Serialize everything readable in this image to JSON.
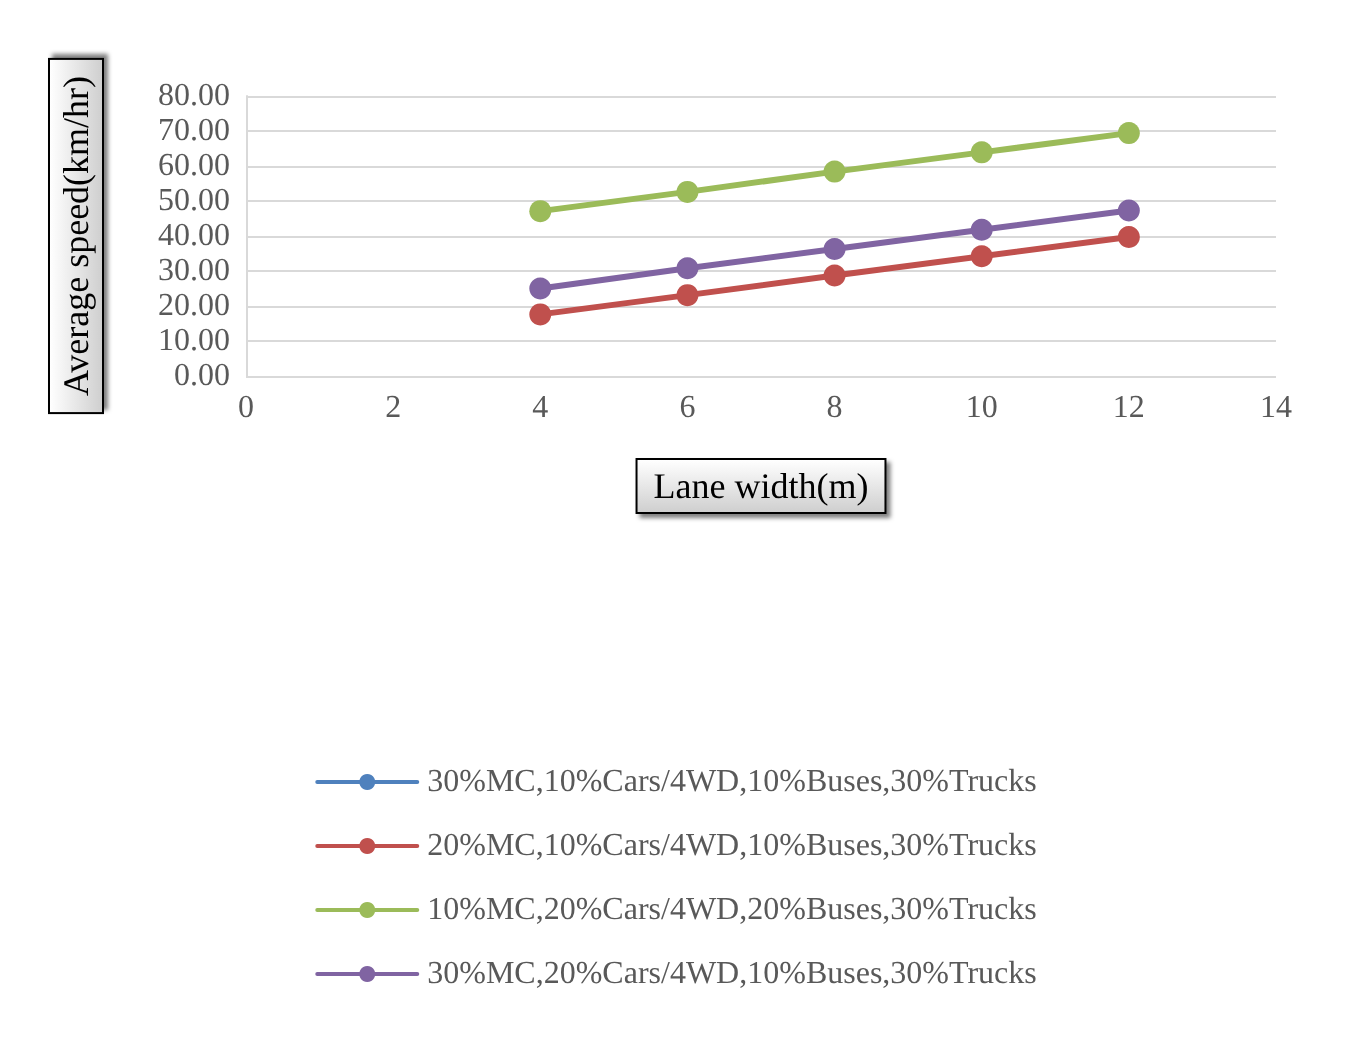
{
  "chart_data": {
    "type": "line",
    "xlabel": "Lane width(m)",
    "ylabel": "Average speed(km/hr)",
    "x": [
      4,
      6,
      8,
      10,
      12
    ],
    "series": [
      {
        "name": "30%MC,10%Cars/4WD,10%Buses,30%Trucks",
        "color": "#4f81bd",
        "values": [
          null,
          null,
          null,
          null,
          null
        ]
      },
      {
        "name": "20%MC,10%Cars/4WD,10%Buses,30%Trucks",
        "color": "#c0504d",
        "values": [
          17.6,
          23.1,
          28.7,
          34.2,
          39.7
        ]
      },
      {
        "name": "10%MC,20%Cars/4WD,20%Buses,30%Trucks",
        "color": "#9bbb59",
        "values": [
          47.1,
          52.6,
          58.4,
          63.9,
          69.4
        ]
      },
      {
        "name": "30%MC,20%Cars/4WD,10%Buses,30%Trucks",
        "color": "#8064a2",
        "values": [
          25.0,
          30.8,
          36.3,
          41.8,
          47.3
        ]
      }
    ],
    "xlim": [
      0,
      14
    ],
    "xticks": [
      0,
      2,
      4,
      6,
      8,
      10,
      12,
      14
    ],
    "ylim": [
      0,
      80
    ],
    "yticks": [
      {
        "value": 0,
        "label": "0.00"
      },
      {
        "value": 10,
        "label": "10.00"
      },
      {
        "value": 20,
        "label": "20.00"
      },
      {
        "value": 30,
        "label": "30.00"
      },
      {
        "value": 40,
        "label": "40.00"
      },
      {
        "value": 50,
        "label": "50.00"
      },
      {
        "value": 60,
        "label": "60.00"
      },
      {
        "value": 70,
        "label": "70.00"
      },
      {
        "value": 80,
        "label": "80.00"
      }
    ],
    "grid": "y",
    "legend": "bottom",
    "marker": "circle",
    "line_style": "solid"
  }
}
